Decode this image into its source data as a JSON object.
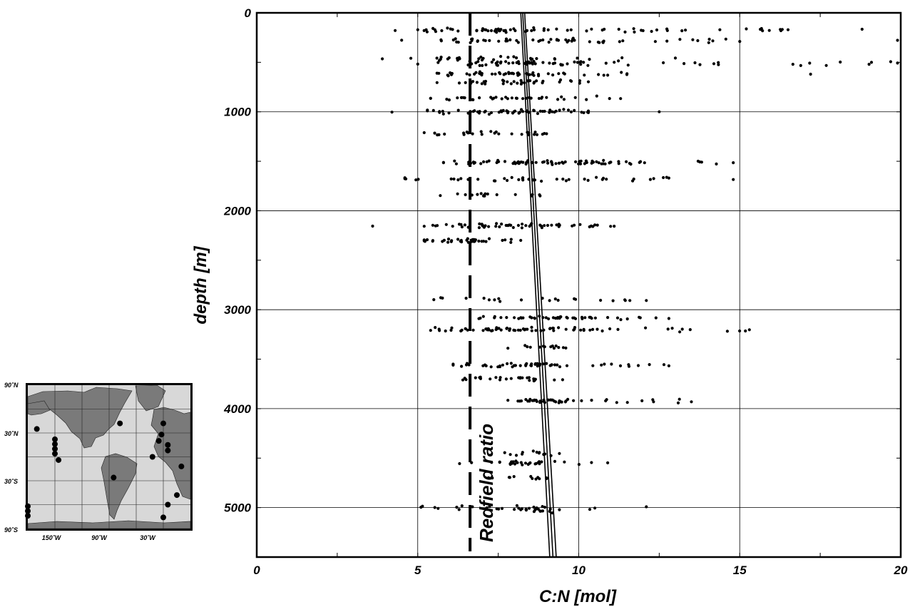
{
  "chart_data": {
    "type": "scatter",
    "title": "",
    "xlabel": "C:N [mol]",
    "ylabel": "depth [m]",
    "xlim": [
      0,
      20
    ],
    "ylim": [
      0,
      5500
    ],
    "y_inverted": true,
    "grid": true,
    "x_ticks": [
      "0",
      "5",
      "10",
      "15",
      "20"
    ],
    "y_ticks": [
      "0",
      "1000",
      "2000",
      "3000",
      "4000",
      "5000"
    ],
    "redfield_ratio": 6.625,
    "annotations": [
      {
        "text": "Redfield ratio",
        "x": 6.625,
        "y_range": [
          5500,
          4000
        ]
      }
    ],
    "regression_lines": [
      {
        "x_top": 8.2,
        "x_bottom": 9.1
      },
      {
        "x_top": 8.26,
        "x_bottom": 9.2
      },
      {
        "x_top": 8.32,
        "x_bottom": 9.3
      }
    ],
    "depth_clusters": [
      {
        "depth": 175,
        "min": 5.0,
        "max": 16.5,
        "center": 7.8,
        "n": 70,
        "outliers": [
          4.3,
          18.8
        ]
      },
      {
        "depth": 280,
        "min": 4.5,
        "max": 15.0,
        "center": 8.2,
        "n": 55,
        "outliers": [
          19.9
        ]
      },
      {
        "depth": 460,
        "min": 3.9,
        "max": 13.0,
        "center": 7.5,
        "n": 30,
        "outliers": []
      },
      {
        "depth": 510,
        "min": 5.0,
        "max": 19.9,
        "center": 8.0,
        "n": 70,
        "outliers": []
      },
      {
        "depth": 620,
        "min": 5.6,
        "max": 11.5,
        "center": 7.7,
        "n": 50,
        "outliers": [
          17.2
        ]
      },
      {
        "depth": 700,
        "min": 5.6,
        "max": 10.3,
        "center": 7.8,
        "n": 35,
        "outliers": []
      },
      {
        "depth": 860,
        "min": 5.4,
        "max": 11.3,
        "center": 7.6,
        "n": 35,
        "outliers": []
      },
      {
        "depth": 1000,
        "min": 5.3,
        "max": 10.3,
        "center": 7.8,
        "n": 60,
        "outliers": [
          4.2,
          12.5
        ]
      },
      {
        "depth": 1220,
        "min": 5.2,
        "max": 9.0,
        "center": 7.4,
        "n": 25,
        "outliers": []
      },
      {
        "depth": 1510,
        "min": 5.8,
        "max": 14.8,
        "center": 9.2,
        "n": 80,
        "outliers": []
      },
      {
        "depth": 1680,
        "min": 4.6,
        "max": 12.8,
        "center": 7.6,
        "n": 40,
        "outliers": [
          14.8
        ]
      },
      {
        "depth": 1840,
        "min": 5.7,
        "max": 8.8,
        "center": 7.6,
        "n": 15,
        "outliers": []
      },
      {
        "depth": 2150,
        "min": 5.2,
        "max": 11.1,
        "center": 7.8,
        "n": 55,
        "outliers": [
          3.6
        ]
      },
      {
        "depth": 2300,
        "min": 5.2,
        "max": 8.2,
        "center": 6.6,
        "n": 35,
        "outliers": []
      },
      {
        "depth": 2900,
        "min": 5.5,
        "max": 12.1,
        "center": 8.4,
        "n": 20,
        "outliers": []
      },
      {
        "depth": 3080,
        "min": 6.9,
        "max": 12.8,
        "center": 8.8,
        "n": 45,
        "outliers": []
      },
      {
        "depth": 3200,
        "min": 5.4,
        "max": 15.3,
        "center": 8.8,
        "n": 70,
        "outliers": []
      },
      {
        "depth": 3380,
        "min": 7.8,
        "max": 9.6,
        "center": 8.8,
        "n": 12,
        "outliers": []
      },
      {
        "depth": 3560,
        "min": 6.1,
        "max": 12.8,
        "center": 8.2,
        "n": 50,
        "outliers": []
      },
      {
        "depth": 3700,
        "min": 6.4,
        "max": 9.5,
        "center": 7.8,
        "n": 25,
        "outliers": []
      },
      {
        "depth": 3920,
        "min": 7.8,
        "max": 13.5,
        "center": 9.0,
        "n": 45,
        "outliers": []
      },
      {
        "depth": 4450,
        "min": 7.7,
        "max": 9.4,
        "center": 8.6,
        "n": 12,
        "outliers": []
      },
      {
        "depth": 4550,
        "min": 6.3,
        "max": 10.9,
        "center": 8.2,
        "n": 30,
        "outliers": []
      },
      {
        "depth": 4700,
        "min": 7.2,
        "max": 9.0,
        "center": 8.2,
        "n": 12,
        "outliers": []
      },
      {
        "depth": 5000,
        "min": 5.1,
        "max": 10.5,
        "center": 8.0,
        "n": 25,
        "outliers": [
          12.1
        ]
      },
      {
        "depth": 5030,
        "min": 8.2,
        "max": 9.4,
        "center": 8.8,
        "n": 10,
        "outliers": []
      }
    ]
  },
  "inset_map": {
    "lat_labels": [
      "90˚N",
      "30˚N",
      "30˚S",
      "90˚S"
    ],
    "lon_labels": [
      "150˚W",
      "90˚W",
      "30˚W"
    ],
    "stations": [
      {
        "lon": -170,
        "lat": 35
      },
      {
        "lon": -150,
        "lat": 22
      },
      {
        "lon": -150,
        "lat": 16
      },
      {
        "lon": -150,
        "lat": 10
      },
      {
        "lon": -150,
        "lat": 4
      },
      {
        "lon": -146,
        "lat": -4
      },
      {
        "lon": -180,
        "lat": -62
      },
      {
        "lon": -180,
        "lat": -68
      },
      {
        "lon": -180,
        "lat": -74
      },
      {
        "lon": -78,
        "lat": 42
      },
      {
        "lon": -30,
        "lat": 42
      },
      {
        "lon": -32,
        "lat": 28
      },
      {
        "lon": -35,
        "lat": 20
      },
      {
        "lon": -25,
        "lat": 15
      },
      {
        "lon": -25,
        "lat": 8
      },
      {
        "lon": -42,
        "lat": 0
      },
      {
        "lon": -85,
        "lat": -26
      },
      {
        "lon": -10,
        "lat": -12
      },
      {
        "lon": -15,
        "lat": -48
      },
      {
        "lon": -25,
        "lat": -60
      },
      {
        "lon": -30,
        "lat": -76
      }
    ],
    "colors": {
      "land": "#7a7a7a",
      "ocean": "#d8d8d8",
      "station": "#000000"
    }
  }
}
